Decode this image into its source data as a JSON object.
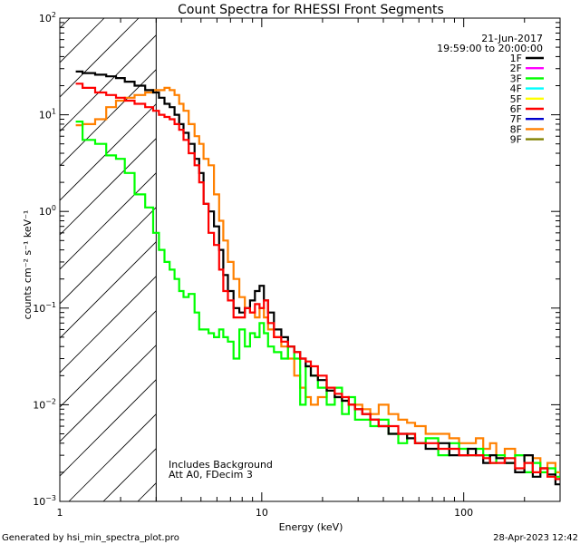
{
  "chart_data": {
    "type": "line",
    "title": "Count Spectra for RHESSI Front Segments",
    "xlabel": "Energy (keV)",
    "ylabel": "counts cm⁻² s⁻¹ keV⁻¹",
    "xscale": "log",
    "yscale": "log",
    "xlim": [
      1,
      300
    ],
    "ylim": [
      0.001,
      100
    ],
    "x_ticks": [
      {
        "value": 1,
        "label": "1"
      },
      {
        "value": 10,
        "label": "10"
      },
      {
        "value": 100,
        "label": "100"
      }
    ],
    "y_ticks": [
      {
        "value": 0.001,
        "base": "10",
        "exp": "−3"
      },
      {
        "value": 0.01,
        "base": "10",
        "exp": "−2"
      },
      {
        "value": 0.1,
        "base": "10",
        "exp": "−1"
      },
      {
        "value": 1,
        "base": "10",
        "exp": "0"
      },
      {
        "value": 10,
        "base": "10",
        "exp": "1"
      },
      {
        "value": 100,
        "base": "10",
        "exp": "2"
      }
    ],
    "shaded_region": {
      "from": 1,
      "to": 3,
      "style": "diagonal-hatch"
    },
    "vertical_line_at": 3,
    "legend_header": [
      "21-Jun-2017",
      "19:59:00 to 20:00:00"
    ],
    "legend_position": "top-right",
    "annotations": [
      "Includes Background",
      "Att A0, FDecim 3"
    ],
    "series": [
      {
        "name": "1F",
        "color": "#000000",
        "x": [
          1.2,
          1.4,
          1.6,
          1.8,
          2,
          2.2,
          2.5,
          2.8,
          3,
          3.2,
          3.4,
          3.6,
          3.8,
          4,
          4.2,
          4.5,
          4.8,
          5,
          5.3,
          5.6,
          6,
          6.3,
          6.6,
          7,
          7.5,
          8,
          8.5,
          9,
          9.5,
          10,
          10.5,
          11,
          12,
          13,
          14,
          15,
          16,
          17,
          18,
          20,
          22,
          24,
          26,
          28,
          30,
          33,
          36,
          40,
          45,
          50,
          55,
          60,
          70,
          80,
          90,
          100,
          110,
          120,
          130,
          140,
          150,
          170,
          190,
          210,
          230,
          250,
          270,
          300
        ],
        "values": [
          28,
          27,
          26,
          25,
          24,
          22,
          20,
          18,
          17,
          15,
          13,
          12,
          10,
          8,
          6.5,
          5,
          3.5,
          2.5,
          1.2,
          1.0,
          0.7,
          0.4,
          0.22,
          0.15,
          0.1,
          0.09,
          0.1,
          0.12,
          0.15,
          0.17,
          0.12,
          0.09,
          0.06,
          0.05,
          0.04,
          0.035,
          0.03,
          0.025,
          0.02,
          0.018,
          0.014,
          0.012,
          0.011,
          0.01,
          0.009,
          0.008,
          0.007,
          0.006,
          0.005,
          0.005,
          0.0045,
          0.004,
          0.0035,
          0.004,
          0.003,
          0.003,
          0.0035,
          0.003,
          0.0025,
          0.003,
          0.0028,
          0.0025,
          0.002,
          0.003,
          0.0018,
          0.0022,
          0.0019,
          0.0015
        ]
      },
      {
        "name": "2F",
        "color": "#ff00ff",
        "x": [],
        "values": []
      },
      {
        "name": "3F",
        "color": "#00ff00",
        "x": [
          1.2,
          1.4,
          1.6,
          1.8,
          2,
          2.2,
          2.5,
          2.8,
          3,
          3.2,
          3.4,
          3.6,
          3.8,
          4,
          4.2,
          4.5,
          4.8,
          5,
          5.3,
          5.6,
          6,
          6.3,
          6.6,
          7,
          7.5,
          8,
          8.5,
          9,
          9.5,
          10,
          10.5,
          11,
          12,
          13,
          14,
          15,
          16,
          17,
          18,
          20,
          22,
          24,
          26,
          28,
          30,
          33,
          36,
          40,
          45,
          50,
          55,
          60,
          70,
          80,
          90,
          100,
          110,
          120,
          130,
          140,
          150,
          170,
          190,
          210,
          230,
          250,
          270,
          300
        ],
        "values": [
          8.5,
          5.5,
          5,
          3.8,
          3.5,
          2.5,
          1.5,
          1.1,
          0.6,
          0.4,
          0.3,
          0.25,
          0.2,
          0.15,
          0.13,
          0.14,
          0.09,
          0.06,
          0.06,
          0.055,
          0.05,
          0.06,
          0.05,
          0.045,
          0.03,
          0.06,
          0.04,
          0.055,
          0.05,
          0.07,
          0.055,
          0.04,
          0.035,
          0.03,
          0.04,
          0.03,
          0.01,
          0.025,
          0.02,
          0.015,
          0.01,
          0.015,
          0.008,
          0.012,
          0.007,
          0.007,
          0.006,
          0.007,
          0.005,
          0.004,
          0.005,
          0.004,
          0.0045,
          0.003,
          0.004,
          0.0035,
          0.003,
          0.0035,
          0.003,
          0.0025,
          0.003,
          0.0025,
          0.003,
          0.002,
          0.0025,
          0.002,
          0.0022,
          0.0018
        ]
      },
      {
        "name": "4F",
        "color": "#00ffff",
        "x": [],
        "values": []
      },
      {
        "name": "5F",
        "color": "#ffff00",
        "x": [],
        "values": []
      },
      {
        "name": "6F",
        "color": "#ff0000",
        "x": [
          1.2,
          1.4,
          1.6,
          1.8,
          2,
          2.2,
          2.5,
          2.8,
          3,
          3.2,
          3.4,
          3.6,
          3.8,
          4,
          4.2,
          4.5,
          4.8,
          5,
          5.3,
          5.6,
          6,
          6.3,
          6.6,
          7,
          7.5,
          8,
          8.5,
          9,
          9.5,
          10,
          10.5,
          11,
          12,
          13,
          14,
          15,
          16,
          17,
          18,
          20,
          22,
          24,
          26,
          28,
          30,
          33,
          36,
          40,
          45,
          50,
          55,
          60,
          70,
          80,
          90,
          100,
          110,
          120,
          130,
          140,
          150,
          170,
          190,
          210,
          230,
          250,
          270,
          300
        ],
        "values": [
          21,
          19,
          17,
          16,
          15,
          14,
          13,
          12,
          11,
          10,
          9.5,
          9,
          8,
          7,
          5.5,
          4,
          3,
          2,
          1.2,
          0.6,
          0.45,
          0.25,
          0.15,
          0.12,
          0.08,
          0.08,
          0.1,
          0.09,
          0.11,
          0.1,
          0.12,
          0.07,
          0.05,
          0.045,
          0.04,
          0.035,
          0.03,
          0.028,
          0.025,
          0.02,
          0.015,
          0.013,
          0.012,
          0.01,
          0.009,
          0.008,
          0.007,
          0.006,
          0.006,
          0.005,
          0.005,
          0.004,
          0.004,
          0.0035,
          0.0035,
          0.003,
          0.003,
          0.003,
          0.0028,
          0.0025,
          0.0025,
          0.0028,
          0.0022,
          0.0025,
          0.002,
          0.0022,
          0.0018,
          0.0017
        ]
      },
      {
        "name": "7F",
        "color": "#0000cc",
        "x": [],
        "values": []
      },
      {
        "name": "8F",
        "color": "#ff8000",
        "x": [
          1.2,
          1.4,
          1.6,
          1.8,
          2,
          2.2,
          2.5,
          2.8,
          3,
          3.2,
          3.4,
          3.6,
          3.8,
          4,
          4.2,
          4.5,
          4.8,
          5,
          5.3,
          5.6,
          6,
          6.3,
          6.6,
          7,
          7.5,
          8,
          8.5,
          9,
          9.5,
          10,
          10.5,
          11,
          12,
          13,
          14,
          15,
          16,
          17,
          18,
          20,
          22,
          24,
          26,
          28,
          30,
          33,
          36,
          40,
          45,
          50,
          55,
          60,
          70,
          80,
          90,
          100,
          110,
          120,
          130,
          140,
          150,
          170,
          190,
          210,
          230,
          250,
          270,
          300
        ],
        "values": [
          7.8,
          8,
          9,
          12,
          14,
          15,
          16,
          17,
          18,
          18,
          19,
          18,
          16,
          13,
          11,
          8,
          6,
          5,
          3.5,
          3,
          1.5,
          0.8,
          0.5,
          0.3,
          0.2,
          0.13,
          0.1,
          0.09,
          0.08,
          0.1,
          0.08,
          0.06,
          0.05,
          0.04,
          0.03,
          0.02,
          0.015,
          0.012,
          0.01,
          0.012,
          0.014,
          0.012,
          0.011,
          0.01,
          0.01,
          0.009,
          0.008,
          0.01,
          0.008,
          0.007,
          0.0065,
          0.006,
          0.005,
          0.005,
          0.0045,
          0.004,
          0.004,
          0.0045,
          0.0035,
          0.004,
          0.003,
          0.0035,
          0.003,
          0.003,
          0.0028,
          0.0022,
          0.0025,
          0.002
        ]
      },
      {
        "name": "9F",
        "color": "#808000",
        "x": [],
        "values": []
      }
    ]
  },
  "footer": {
    "left": "Generated by hsi_min_spectra_plot.pro",
    "right": "28-Apr-2023 12:42"
  }
}
